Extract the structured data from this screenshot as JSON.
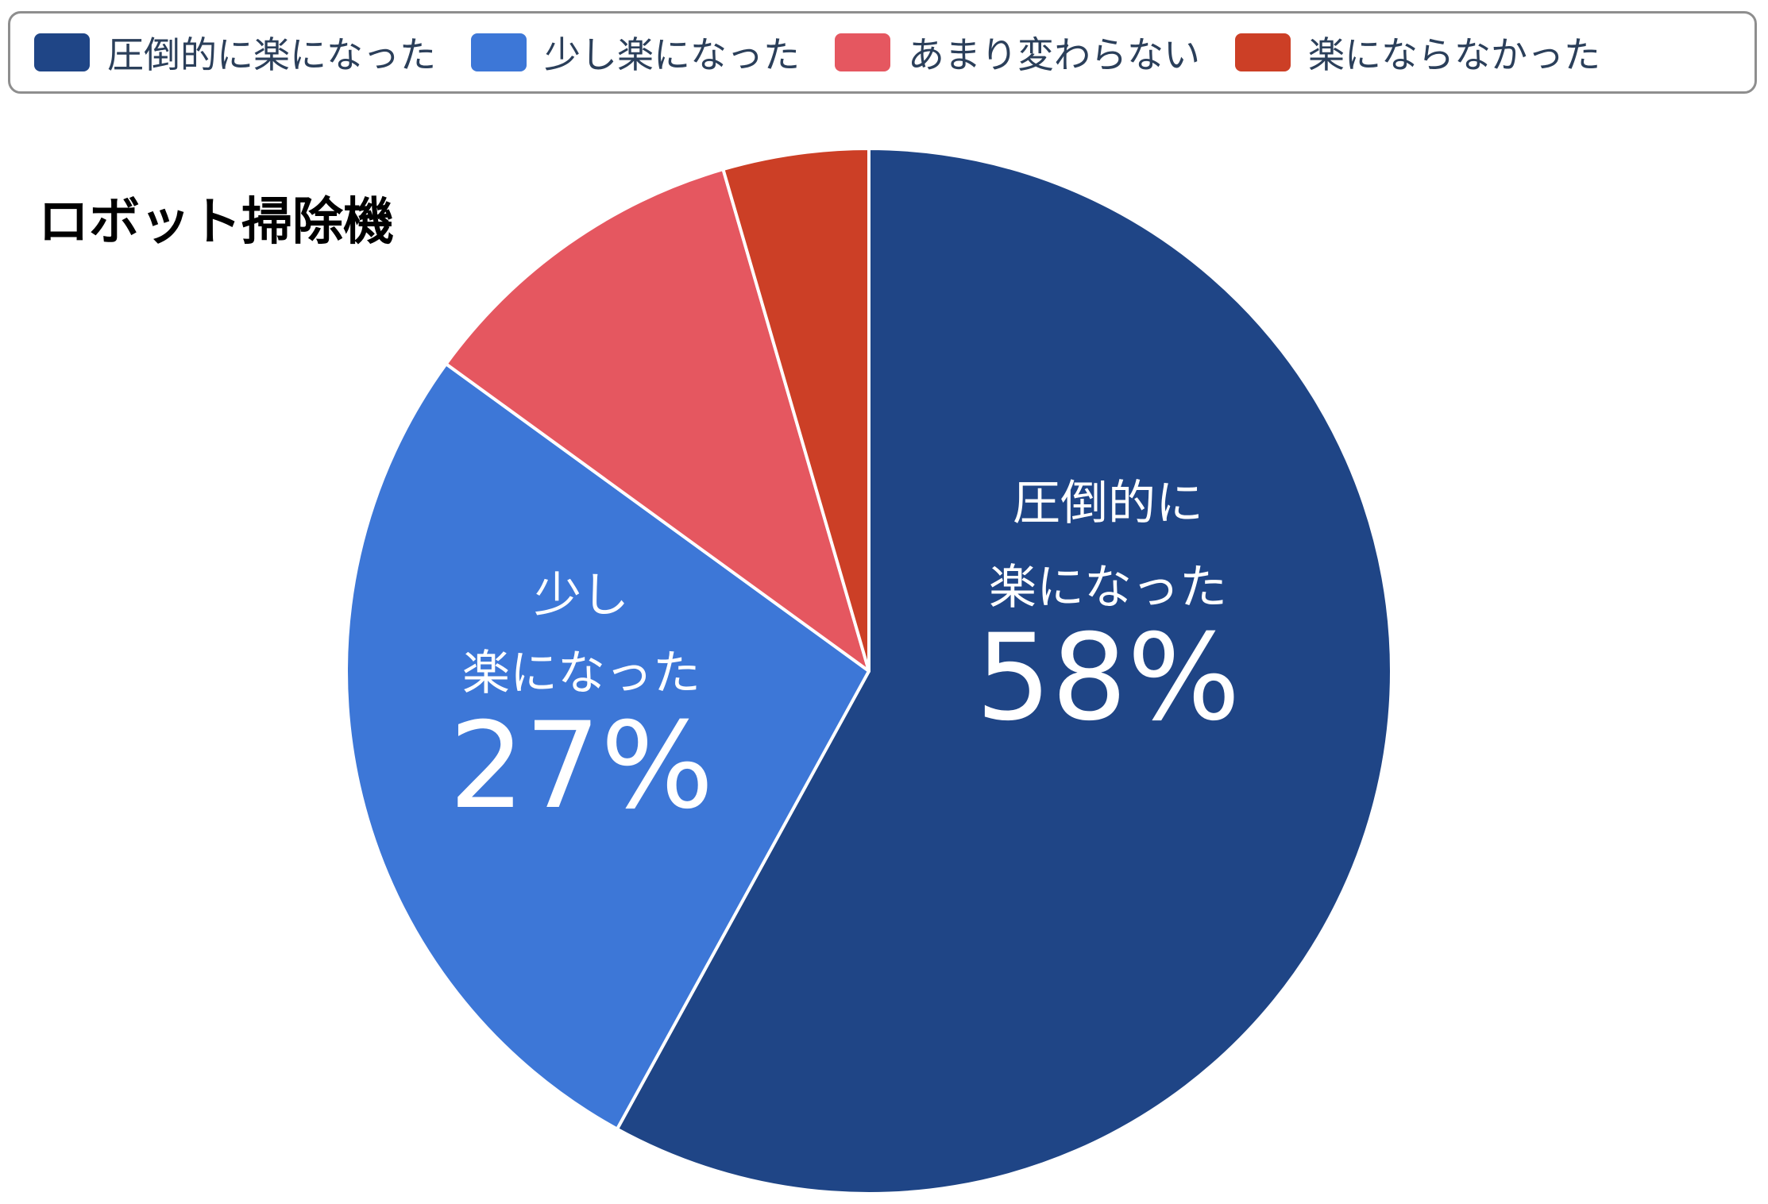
{
  "chart_data": {
    "type": "pie",
    "title": "ロボット掃除機",
    "legend_position": "top",
    "slices": [
      {
        "label": "圧倒的に楽になった",
        "value": 58,
        "display": "58%",
        "inner_lines": [
          "圧倒的に",
          "楽になった"
        ],
        "color": "#1f4586"
      },
      {
        "label": "少し楽になった",
        "value": 27,
        "display": "27%",
        "inner_lines": [
          "少し",
          "楽になった"
        ],
        "color": "#3d77d7"
      },
      {
        "label": "あまり変わらない",
        "value": 10.5,
        "display": "",
        "inner_lines": [],
        "color": "#e55760"
      },
      {
        "label": "楽にならなかった",
        "value": 4.5,
        "display": "",
        "inner_lines": [],
        "color": "#cc3f26"
      }
    ]
  }
}
